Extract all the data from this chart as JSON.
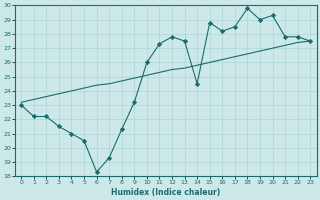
{
  "xlabel": "Humidex (Indice chaleur)",
  "ylabel": "",
  "bg_color": "#cce8e8",
  "line_color": "#1a6b6b",
  "x_data": [
    0,
    1,
    2,
    3,
    4,
    5,
    6,
    7,
    8,
    9,
    10,
    11,
    12,
    13,
    14,
    15,
    16,
    17,
    18,
    19,
    20,
    21,
    22,
    23
  ],
  "y_line1": [
    23.0,
    22.2,
    22.2,
    21.5,
    21.0,
    20.5,
    18.3,
    19.3,
    21.3,
    23.2,
    26.0,
    27.3,
    27.8,
    27.5,
    24.5,
    28.8,
    28.2,
    28.5,
    29.8,
    29.0,
    29.3,
    27.8,
    27.8,
    27.5
  ],
  "y_line2": [
    23.2,
    23.4,
    23.6,
    23.8,
    24.0,
    24.2,
    24.4,
    24.5,
    24.7,
    24.9,
    25.1,
    25.3,
    25.5,
    25.6,
    25.8,
    26.0,
    26.2,
    26.4,
    26.6,
    26.8,
    27.0,
    27.2,
    27.4,
    27.5
  ],
  "ylim": [
    18,
    30
  ],
  "xlim": [
    -0.5,
    23.5
  ],
  "yticks": [
    18,
    19,
    20,
    21,
    22,
    23,
    24,
    25,
    26,
    27,
    28,
    29,
    30
  ],
  "xticks": [
    0,
    1,
    2,
    3,
    4,
    5,
    6,
    7,
    8,
    9,
    10,
    11,
    12,
    13,
    14,
    15,
    16,
    17,
    18,
    19,
    20,
    21,
    22,
    23
  ],
  "grid_color": "#aed4d4",
  "marker": "D",
  "marker_size": 2.2,
  "linewidth": 0.8
}
